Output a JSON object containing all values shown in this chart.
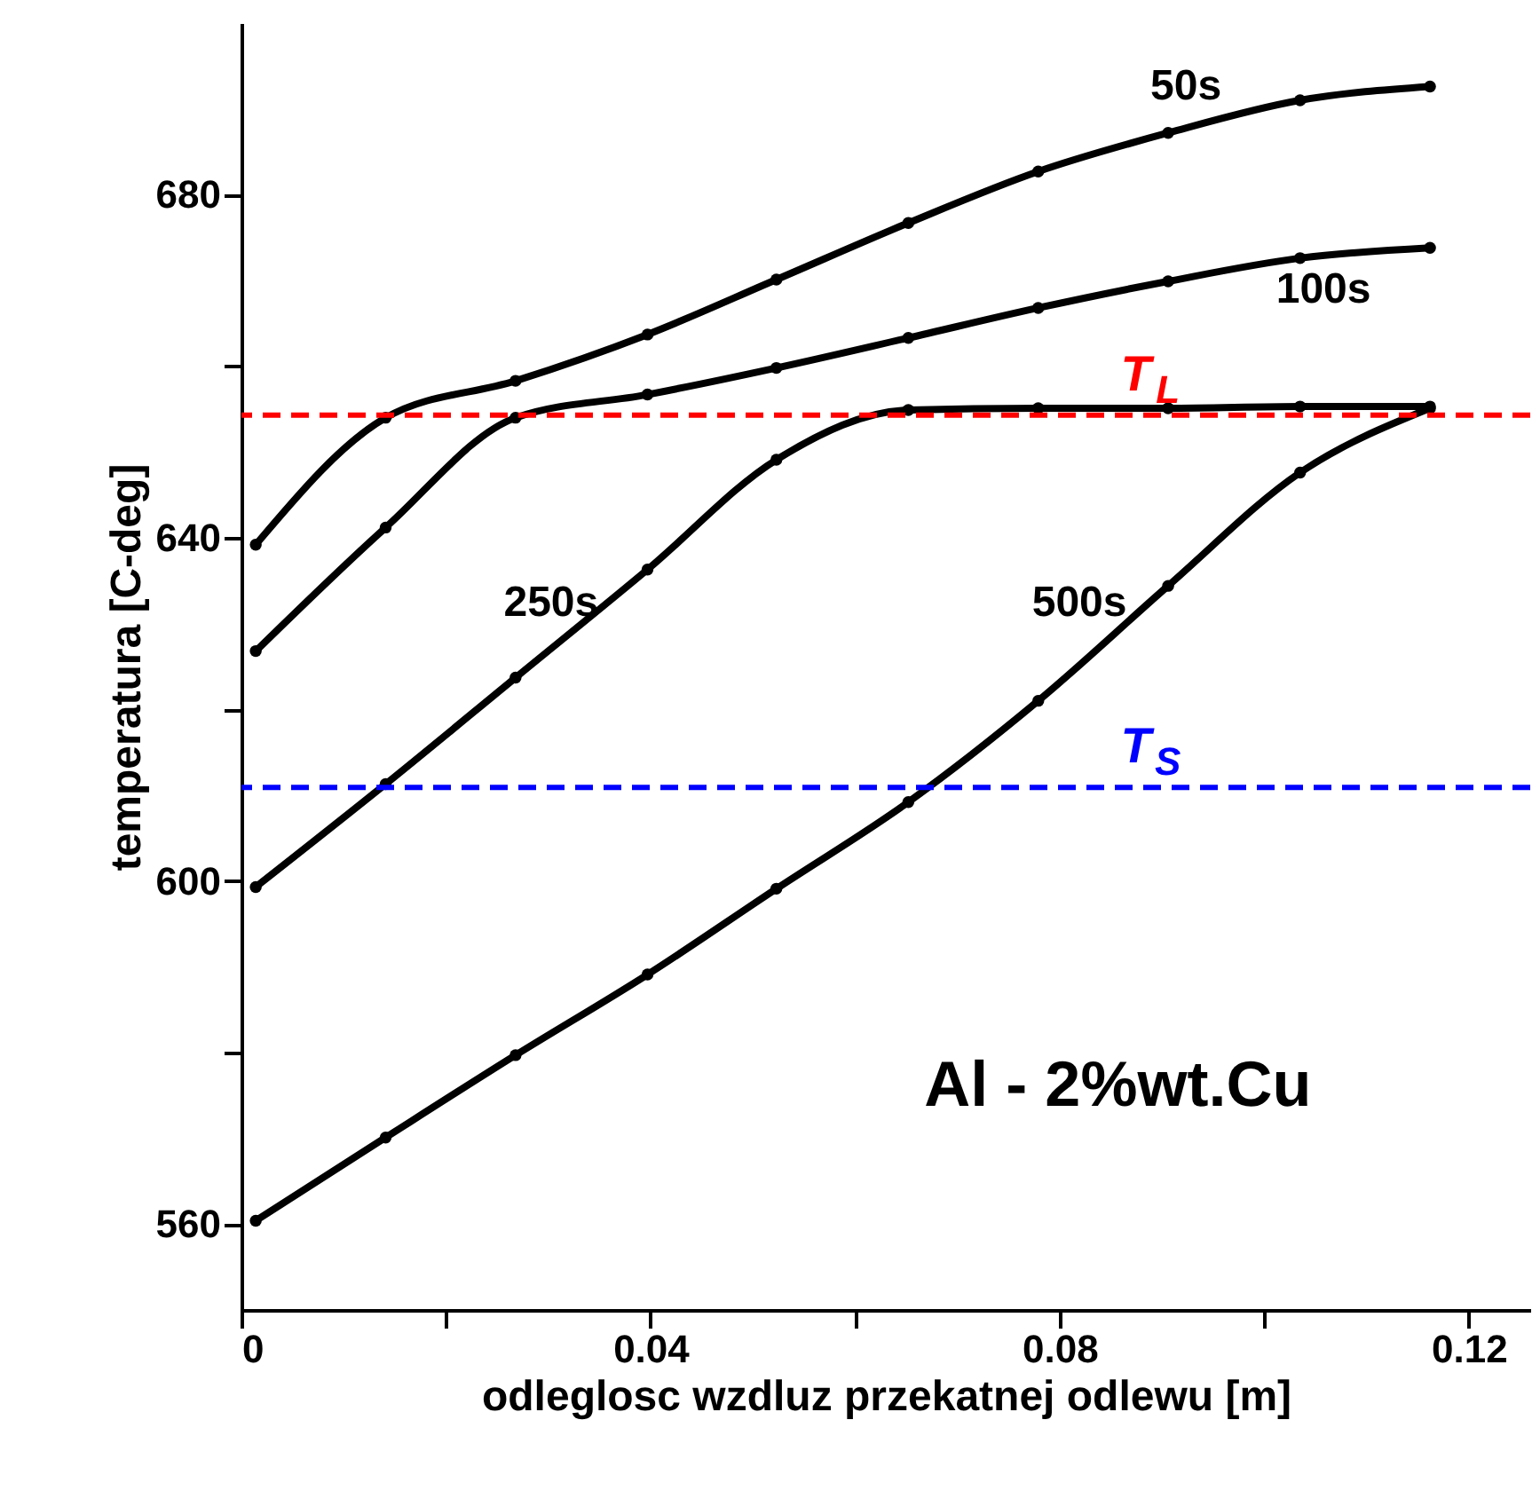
{
  "chart_data": {
    "type": "line",
    "xlabel": "odleglosc wzdluz przekatnej odlewu [m]",
    "ylabel": "temperatura [C-deg]",
    "x": [
      0.0014,
      0.0141,
      0.0268,
      0.0397,
      0.0523,
      0.0652,
      0.0779,
      0.0906,
      0.1035,
      0.1162
    ],
    "series": [
      {
        "name": "50s",
        "color": "#000000",
        "values": [
          639.2,
          654.0,
          658.3,
          663.7,
          670.1,
          676.7,
          682.7,
          687.2,
          691.0,
          692.6
        ]
      },
      {
        "name": "100s",
        "color": "#000000",
        "values": [
          626.8,
          641.2,
          654.0,
          656.7,
          659.8,
          663.3,
          666.8,
          669.9,
          672.6,
          673.8
        ]
      },
      {
        "name": "250s",
        "color": "#000000",
        "values": [
          599.3,
          611.3,
          623.7,
          636.3,
          649.1,
          654.9,
          655.1,
          655.1,
          655.3,
          655.3
        ]
      },
      {
        "name": "500s",
        "color": "#000000",
        "values": [
          560.4,
          570.1,
          579.7,
          589.1,
          599.1,
          609.2,
          621.0,
          634.4,
          647.6,
          655.1
        ]
      }
    ],
    "xlim": [
      0,
      0.126
    ],
    "ylim": [
      550,
      700
    ],
    "xticks": [
      0,
      {
        "value": 0.02,
        "label": null
      },
      0.04,
      {
        "value": 0.06,
        "label": null
      },
      0.08,
      {
        "value": 0.1,
        "label": null
      },
      0.12
    ],
    "yticks": [
      560,
      {
        "value": 580,
        "label": null
      },
      600,
      {
        "value": 620,
        "label": null
      },
      640,
      {
        "value": 660,
        "label": null
      },
      680
    ],
    "ref_lines": [
      {
        "axis": "y",
        "value": 654.3,
        "label": "T$_{L}$",
        "color": "#ff0000",
        "line_style": "dashed"
      },
      {
        "axis": "y",
        "value": 610.9,
        "label": "T$_{S}$",
        "color": "#0000ff",
        "line_style": "dashed"
      }
    ],
    "annotations": [
      "Al - 2%wt.Cu"
    ],
    "marker": "circle",
    "line_style": "solid",
    "grid": false
  }
}
